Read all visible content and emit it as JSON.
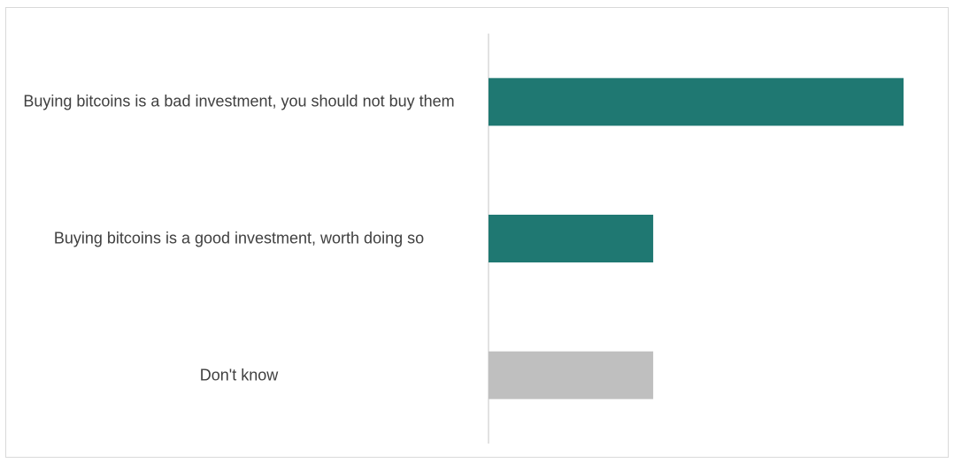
{
  "chart_data": {
    "type": "bar",
    "orientation": "horizontal",
    "categories": [
      "Buying bitcoins is a bad investment, you should not buy them",
      "Buying bitcoins is a good investment, worth doing so",
      "Don't know"
    ],
    "values": [
      0.63,
      0.25,
      0.25
    ],
    "colors": [
      "#1f7872",
      "#1f7872",
      "#bfbfbf"
    ],
    "title": "",
    "xlabel": "",
    "ylabel": "",
    "xlim": [
      0,
      0.63
    ],
    "grid": false,
    "legend": "none"
  }
}
